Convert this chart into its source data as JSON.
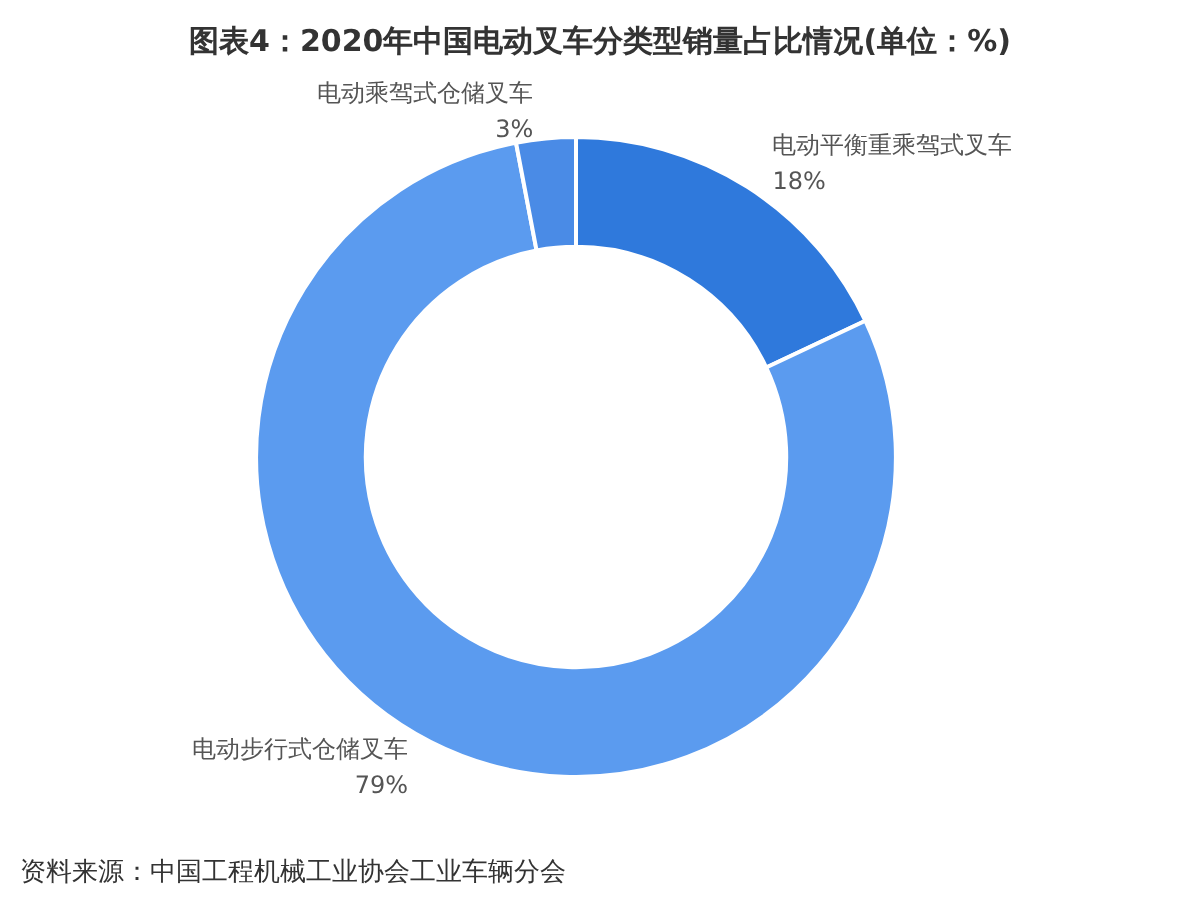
{
  "chart_data": {
    "type": "donut",
    "title": "图表4：2020年中国电动叉车分类型销量占比情况(单位：%)",
    "categories": [
      "电动平衡重乘驾式叉车",
      "电动步行式仓储叉车",
      "电动乘驾式仓储叉车"
    ],
    "values": [
      18,
      79,
      3
    ],
    "colors": [
      "#2f79dc",
      "#5b9bef",
      "#4a8be6"
    ],
    "value_labels": [
      "18%",
      "79%",
      "3%"
    ],
    "legend": false,
    "annotations": [
      "资料来源：中国工程机械工业协会工业车辆分会"
    ]
  }
}
